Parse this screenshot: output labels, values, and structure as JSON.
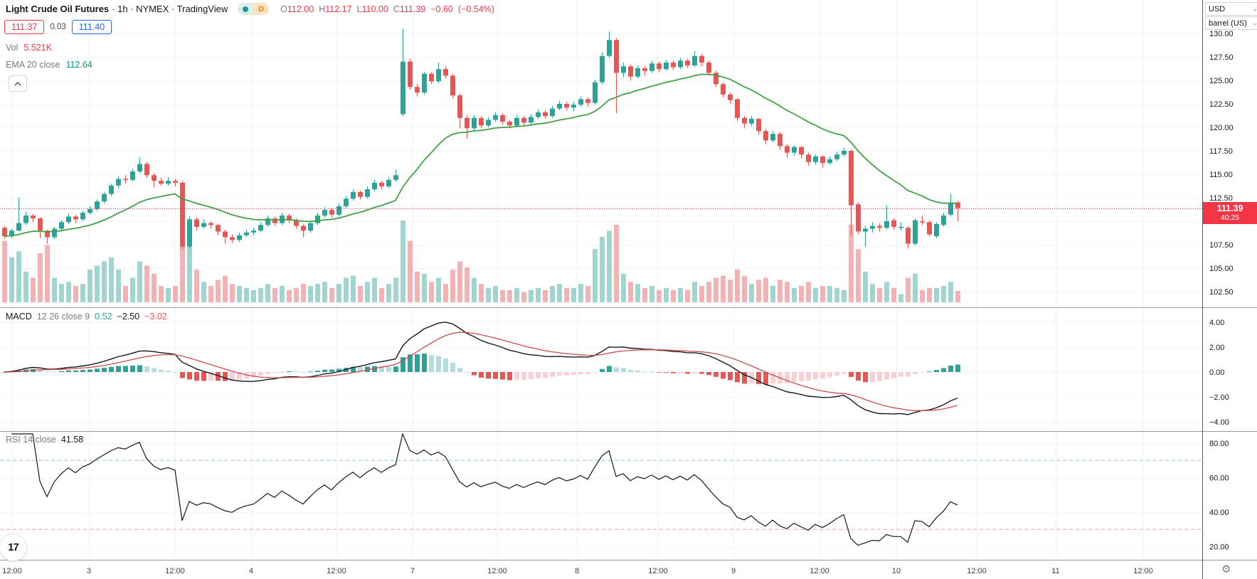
{
  "header": {
    "symbol": "Light Crude Oil Futures",
    "meta": "· 1h · NYMEX · TradingView",
    "session_badge": "D",
    "ohlc": {
      "o_label": "O",
      "o": "112.00",
      "h_label": "H",
      "h": "112.17",
      "l_label": "L",
      "l": "110.00",
      "c_label": "C",
      "c": "111.39",
      "change": "−0.60",
      "change_pct": "(−0.54%)"
    },
    "bid": "111.37",
    "spread": "0.03",
    "ask": "111.40",
    "vol_label": "Vol",
    "vol_value": "5.521K",
    "ema_label": "EMA 20 close",
    "ema_value": "112.64"
  },
  "price_axis": {
    "currency": "USD",
    "unit": "barrel (US)",
    "badge_price": "111.39",
    "badge_countdown": "40:25"
  },
  "panes": {
    "macd": {
      "name": "MACD",
      "params": "12 26 close 9",
      "v_hist": "0.52",
      "v_macd": "−2.50",
      "v_signal": "−3.02"
    },
    "rsi": {
      "name": "RSI 14 close",
      "value": "41.58"
    }
  },
  "chart_data": {
    "type": "candlestick",
    "symbol": "Light Crude Oil Futures",
    "interval": "1h",
    "exchange": "NYMEX",
    "last_price": 111.39,
    "countdown": "40:25",
    "price_ticks": [
      [
        130.0,
        "130.00"
      ],
      [
        127.5,
        "127.50"
      ],
      [
        125.0,
        "125.00"
      ],
      [
        122.5,
        "122.50"
      ],
      [
        120.0,
        "120.00"
      ],
      [
        117.5,
        "117.50"
      ],
      [
        115.0,
        "115.00"
      ],
      [
        112.5,
        "112.50"
      ],
      [
        107.5,
        "107.50"
      ],
      [
        105.0,
        "105.00"
      ],
      [
        102.5,
        "102.50"
      ]
    ],
    "price_grid_extra": [
      110.0
    ],
    "macd_ticks": [
      [
        4,
        "4.00"
      ],
      [
        2,
        "2.00"
      ],
      [
        0,
        "0.00"
      ],
      [
        -2,
        "−2.00"
      ],
      [
        -4,
        "−4.00"
      ]
    ],
    "rsi_ticks": [
      [
        80,
        "80.00"
      ],
      [
        60,
        "60.00"
      ],
      [
        40,
        "40.00"
      ],
      [
        20,
        "20.00"
      ]
    ],
    "rsi_bands": [
      70,
      30
    ],
    "time_ticks": [
      [
        17,
        "12:00"
      ],
      [
        125,
        "3"
      ],
      [
        246,
        "12:00"
      ],
      [
        353,
        "4"
      ],
      [
        473,
        "12:00"
      ],
      [
        580,
        "7"
      ],
      [
        699,
        "12:00"
      ],
      [
        811,
        "8"
      ],
      [
        925,
        "12:00"
      ],
      [
        1031,
        "9"
      ],
      [
        1152,
        "12:00"
      ],
      [
        1260,
        "10"
      ],
      [
        1373,
        "12:00"
      ],
      [
        1484,
        "11"
      ],
      [
        1607,
        "12:00"
      ]
    ],
    "indicators": {
      "ema": {
        "period": 20,
        "source": "close",
        "last": 112.64
      },
      "macd": {
        "fast": 12,
        "slow": 26,
        "source": "close",
        "signal": 9,
        "last_hist": 0.52,
        "last_macd": -2.5,
        "last_signal": -3.02
      },
      "rsi": {
        "period": 14,
        "source": "close",
        "last": 41.58,
        "overbought": 70,
        "oversold": 30
      }
    },
    "colors": {
      "up": "#26a69a",
      "down": "#ef5350",
      "vol_up": "rgba(38,166,154,0.45)",
      "vol_down": "rgba(239,83,80,0.45)",
      "ema": "#43a047",
      "macd_line": "#131722",
      "signal_line": "#c84c4c",
      "hist_up_grow": "#26a69a",
      "hist_up_fall": "#b2dfdb",
      "hist_dn_fall": "#ef5350",
      "hist_dn_grow": "#ffcdd2",
      "rsi_line": "#131722",
      "band_up": "rgba(76,175,80,0.6)",
      "band_dn": "rgba(239,83,80,0.6)",
      "grid": "#f0f3fa",
      "separator": "#9598a1",
      "axis_border": "#555b66",
      "last_price_line": "#f23645",
      "badge": "#f23645"
    },
    "candles": [
      [
        109.3,
        109.5,
        108.1,
        108.4,
        30000
      ],
      [
        108.4,
        109.2,
        108.2,
        109.0,
        22000
      ],
      [
        109.0,
        112.5,
        108.9,
        109.8,
        25000
      ],
      [
        109.8,
        111.0,
        109.6,
        110.6,
        15000
      ],
      [
        110.6,
        110.8,
        109.9,
        110.3,
        12000
      ],
      [
        110.3,
        110.4,
        108.2,
        109.0,
        24000
      ],
      [
        109.0,
        109.1,
        107.6,
        108.3,
        28000
      ],
      [
        108.3,
        109.4,
        108.1,
        109.2,
        12000
      ],
      [
        109.2,
        110.1,
        109.0,
        109.9,
        9000
      ],
      [
        109.9,
        110.8,
        109.7,
        110.5,
        10000
      ],
      [
        110.5,
        110.7,
        109.8,
        110.2,
        8000
      ],
      [
        110.2,
        111.1,
        110.0,
        110.9,
        9000
      ],
      [
        110.9,
        111.6,
        110.7,
        111.3,
        16000
      ],
      [
        111.3,
        112.3,
        111.1,
        112.1,
        18000
      ],
      [
        112.1,
        113.1,
        111.9,
        112.9,
        20000
      ],
      [
        112.9,
        114.0,
        112.7,
        113.8,
        22000
      ],
      [
        113.8,
        114.8,
        113.5,
        114.5,
        16000
      ],
      [
        114.5,
        114.9,
        114.0,
        114.4,
        8000
      ],
      [
        114.4,
        115.6,
        114.2,
        115.3,
        12000
      ],
      [
        115.3,
        116.8,
        115.1,
        116.1,
        20000
      ],
      [
        116.1,
        116.3,
        114.6,
        114.9,
        18000
      ],
      [
        114.9,
        115.1,
        113.6,
        114.3,
        14000
      ],
      [
        114.3,
        114.6,
        113.8,
        114.0,
        8000
      ],
      [
        114.0,
        114.7,
        113.8,
        114.3,
        7000
      ],
      [
        114.3,
        114.5,
        113.7,
        114.1,
        8000
      ],
      [
        114.1,
        114.3,
        107.0,
        107.3,
        40000
      ],
      [
        107.3,
        110.5,
        107.1,
        110.2,
        30000
      ],
      [
        110.2,
        110.4,
        109.0,
        109.4,
        16000
      ],
      [
        109.4,
        110.2,
        109.2,
        109.8,
        10000
      ],
      [
        109.8,
        110.0,
        109.2,
        109.6,
        8000
      ],
      [
        109.6,
        109.7,
        108.5,
        108.9,
        11000
      ],
      [
        108.9,
        109.1,
        107.6,
        108.3,
        13000
      ],
      [
        108.3,
        108.6,
        107.7,
        108.0,
        9000
      ],
      [
        108.0,
        108.8,
        107.8,
        108.5,
        8000
      ],
      [
        108.5,
        109.1,
        108.3,
        108.8,
        7000
      ],
      [
        108.8,
        109.3,
        108.5,
        109.0,
        6000
      ],
      [
        109.0,
        109.9,
        108.8,
        109.6,
        7000
      ],
      [
        109.6,
        110.6,
        109.4,
        110.3,
        9000
      ],
      [
        110.3,
        110.5,
        109.5,
        109.8,
        7000
      ],
      [
        109.8,
        110.9,
        109.6,
        110.6,
        8000
      ],
      [
        110.6,
        110.8,
        109.8,
        110.1,
        6000
      ],
      [
        110.1,
        110.3,
        109.2,
        109.5,
        7000
      ],
      [
        109.5,
        109.7,
        108.3,
        109.0,
        9000
      ],
      [
        109.0,
        110.1,
        108.8,
        109.8,
        8000
      ],
      [
        109.8,
        110.9,
        109.6,
        110.6,
        9000
      ],
      [
        110.6,
        111.5,
        110.4,
        111.2,
        10000
      ],
      [
        111.2,
        111.4,
        110.4,
        110.7,
        7000
      ],
      [
        110.7,
        111.9,
        110.5,
        111.6,
        9000
      ],
      [
        111.6,
        112.7,
        111.4,
        112.4,
        12000
      ],
      [
        112.4,
        113.4,
        112.2,
        113.1,
        13000
      ],
      [
        113.1,
        113.3,
        112.3,
        112.6,
        8000
      ],
      [
        112.6,
        113.7,
        112.4,
        113.4,
        10000
      ],
      [
        113.4,
        114.4,
        113.2,
        114.1,
        12000
      ],
      [
        114.1,
        114.3,
        113.4,
        113.7,
        7000
      ],
      [
        113.7,
        114.7,
        113.5,
        114.4,
        9000
      ],
      [
        114.4,
        115.5,
        114.2,
        114.9,
        12000
      ],
      [
        121.4,
        130.5,
        121.2,
        127.0,
        40000
      ],
      [
        127.0,
        127.3,
        124.0,
        124.3,
        30000
      ],
      [
        124.3,
        124.6,
        123.3,
        123.7,
        15000
      ],
      [
        123.7,
        125.9,
        123.5,
        125.7,
        14000
      ],
      [
        125.7,
        125.9,
        124.6,
        124.9,
        10000
      ],
      [
        124.9,
        126.9,
        124.7,
        126.2,
        12000
      ],
      [
        126.2,
        126.5,
        125.2,
        125.5,
        9000
      ],
      [
        125.5,
        125.7,
        123.1,
        123.4,
        16000
      ],
      [
        123.4,
        123.6,
        119.9,
        121.0,
        20000
      ],
      [
        121.0,
        121.3,
        118.8,
        119.9,
        17000
      ],
      [
        119.9,
        121.3,
        119.7,
        121.0,
        12000
      ],
      [
        121.0,
        121.2,
        119.9,
        120.2,
        9000
      ],
      [
        120.2,
        121.1,
        120.0,
        120.8,
        7000
      ],
      [
        120.8,
        121.6,
        120.6,
        121.3,
        8000
      ],
      [
        121.3,
        121.5,
        120.3,
        120.6,
        6000
      ],
      [
        120.6,
        120.8,
        119.9,
        120.2,
        6000
      ],
      [
        120.2,
        121.3,
        120.0,
        121.0,
        7000
      ],
      [
        121.0,
        121.2,
        120.2,
        120.5,
        5000
      ],
      [
        120.5,
        121.4,
        120.3,
        121.1,
        6000
      ],
      [
        121.1,
        121.9,
        120.9,
        121.6,
        7000
      ],
      [
        121.6,
        121.8,
        120.9,
        121.2,
        6000
      ],
      [
        121.2,
        122.3,
        121.0,
        122.0,
        8000
      ],
      [
        122.0,
        122.8,
        121.8,
        122.5,
        9000
      ],
      [
        122.5,
        122.7,
        121.8,
        122.1,
        7000
      ],
      [
        122.1,
        122.7,
        121.7,
        122.4,
        7000
      ],
      [
        122.4,
        123.3,
        122.2,
        123.0,
        9000
      ],
      [
        123.0,
        123.2,
        122.2,
        122.6,
        8000
      ],
      [
        122.6,
        125.1,
        122.4,
        124.8,
        26000
      ],
      [
        124.8,
        128.0,
        124.6,
        127.6,
        32000
      ],
      [
        127.6,
        130.2,
        127.4,
        129.3,
        35000
      ],
      [
        129.3,
        129.5,
        121.5,
        125.8,
        38000
      ],
      [
        125.8,
        126.9,
        125.3,
        126.5,
        14000
      ],
      [
        126.5,
        126.7,
        125.0,
        125.4,
        10000
      ],
      [
        125.4,
        126.6,
        125.2,
        126.3,
        9000
      ],
      [
        126.3,
        126.5,
        125.5,
        126.0,
        7000
      ],
      [
        126.0,
        127.1,
        125.8,
        126.8,
        8000
      ],
      [
        126.8,
        127.0,
        125.9,
        126.2,
        6000
      ],
      [
        126.2,
        127.2,
        126.0,
        126.9,
        7000
      ],
      [
        126.9,
        127.1,
        126.1,
        126.4,
        6000
      ],
      [
        126.4,
        127.4,
        126.2,
        127.1,
        7000
      ],
      [
        127.1,
        127.3,
        126.3,
        126.6,
        6000
      ],
      [
        126.6,
        128.1,
        126.4,
        127.6,
        10000
      ],
      [
        127.6,
        127.8,
        126.5,
        126.9,
        8000
      ],
      [
        126.9,
        127.1,
        125.5,
        125.8,
        10000
      ],
      [
        125.8,
        126.0,
        124.3,
        124.6,
        12000
      ],
      [
        124.6,
        124.8,
        123.2,
        123.5,
        13000
      ],
      [
        123.5,
        123.7,
        122.5,
        122.9,
        11000
      ],
      [
        123.0,
        123.1,
        120.7,
        121.0,
        16000
      ],
      [
        121.0,
        121.2,
        119.9,
        120.4,
        13000
      ],
      [
        120.4,
        121.2,
        120.1,
        120.9,
        9000
      ],
      [
        120.9,
        121.0,
        119.2,
        119.6,
        11000
      ],
      [
        119.6,
        119.8,
        118.2,
        118.6,
        12000
      ],
      [
        118.6,
        119.6,
        118.4,
        119.3,
        8000
      ],
      [
        119.3,
        119.5,
        117.6,
        118.0,
        11000
      ],
      [
        118.0,
        118.2,
        116.8,
        117.3,
        10000
      ],
      [
        117.3,
        118.1,
        117.0,
        117.9,
        7000
      ],
      [
        117.9,
        118.0,
        116.7,
        117.1,
        8000
      ],
      [
        117.1,
        117.3,
        115.9,
        116.3,
        10000
      ],
      [
        116.3,
        117.1,
        116.0,
        116.9,
        7000
      ],
      [
        116.9,
        117.0,
        115.7,
        116.2,
        8000
      ],
      [
        116.2,
        116.9,
        116.0,
        116.6,
        8000
      ],
      [
        116.6,
        117.4,
        116.4,
        117.1,
        7000
      ],
      [
        117.1,
        117.8,
        116.9,
        117.5,
        6000
      ],
      [
        117.5,
        117.6,
        108.5,
        111.7,
        38000
      ],
      [
        111.8,
        112.0,
        108.6,
        108.9,
        26000
      ],
      [
        108.9,
        109.5,
        107.3,
        109.2,
        15000
      ],
      [
        109.2,
        109.9,
        108.8,
        109.5,
        9000
      ],
      [
        109.5,
        109.8,
        108.9,
        109.3,
        7000
      ],
      [
        109.3,
        111.7,
        109.1,
        110.0,
        10000
      ],
      [
        110.1,
        110.3,
        109.1,
        109.4,
        7000
      ],
      [
        109.4,
        109.9,
        109.0,
        109.4,
        4000
      ],
      [
        109.3,
        109.5,
        107.1,
        107.6,
        12000
      ],
      [
        107.6,
        110.3,
        107.4,
        110.1,
        14000
      ],
      [
        110.0,
        110.6,
        109.6,
        109.9,
        6000
      ],
      [
        109.9,
        110.1,
        108.4,
        108.6,
        7000
      ],
      [
        108.4,
        109.9,
        108.2,
        109.7,
        7000
      ],
      [
        109.6,
        110.9,
        109.4,
        110.6,
        8000
      ],
      [
        110.7,
        112.9,
        110.5,
        112.0,
        10000
      ],
      [
        112.0,
        112.17,
        110.0,
        111.39,
        5521
      ]
    ]
  }
}
